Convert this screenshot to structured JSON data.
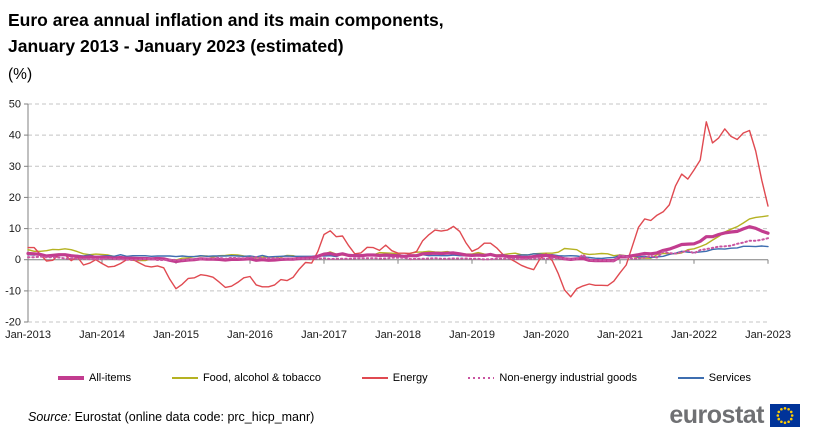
{
  "header": {
    "title_line1": "Euro area annual inflation and its main components,",
    "title_line2": "January 2013 - January 2023 (estimated)",
    "unit": "(%)"
  },
  "chart_data": {
    "type": "line",
    "title": "Euro area annual inflation and its main components, January 2013 - January 2023 (estimated)",
    "ylabel": "(%)",
    "xlabel": "",
    "x_unit": "month",
    "x_start": "Jan-2013",
    "x_end": "Jan-2023",
    "x_tick_labels": [
      "Jan-2013",
      "Jan-2014",
      "Jan-2015",
      "Jan-2016",
      "Jan-2017",
      "Jan-2018",
      "Jan-2019",
      "Jan-2020",
      "Jan-2021",
      "Jan-2022",
      "Jan-2023"
    ],
    "y_ticks": [
      50,
      40,
      30,
      20,
      10,
      0,
      -10,
      -20
    ],
    "ylim": [
      -20,
      50
    ],
    "grid": "horizontal-dashed",
    "zero_line": "solid",
    "legend_position": "bottom",
    "axis_color": "#808080",
    "grid_color": "#C4C4C4",
    "series": [
      {
        "name": "All-items",
        "color": "#C23C8F",
        "line_width": 3.2,
        "dash": "solid",
        "values": [
          2.0,
          1.9,
          1.7,
          1.2,
          1.4,
          1.6,
          1.6,
          1.3,
          1.1,
          0.7,
          0.9,
          0.8,
          0.8,
          0.7,
          0.5,
          0.7,
          0.5,
          0.5,
          0.4,
          0.4,
          0.3,
          0.4,
          0.3,
          -0.2,
          -0.6,
          -0.3,
          -0.1,
          0.0,
          0.3,
          0.2,
          0.2,
          0.1,
          -0.1,
          0.1,
          0.1,
          0.2,
          0.3,
          -0.2,
          0.0,
          -0.2,
          -0.1,
          0.1,
          0.2,
          0.2,
          0.4,
          0.5,
          0.6,
          1.1,
          1.8,
          2.0,
          1.5,
          1.9,
          1.4,
          1.3,
          1.3,
          1.5,
          1.5,
          1.4,
          1.5,
          1.4,
          1.3,
          1.1,
          1.3,
          1.3,
          1.9,
          2.0,
          2.1,
          2.0,
          2.1,
          2.2,
          1.9,
          1.5,
          1.4,
          1.5,
          1.4,
          1.7,
          1.2,
          1.3,
          1.0,
          1.0,
          0.8,
          0.7,
          1.0,
          1.3,
          1.4,
          1.2,
          0.7,
          0.3,
          0.1,
          0.3,
          0.4,
          -0.2,
          -0.3,
          -0.3,
          -0.3,
          -0.3,
          0.9,
          0.9,
          1.3,
          1.6,
          2.0,
          1.9,
          2.2,
          3.0,
          3.4,
          4.1,
          4.9,
          5.0,
          5.1,
          5.9,
          7.4,
          7.4,
          8.1,
          8.6,
          8.9,
          9.1,
          9.9,
          10.6,
          10.1,
          9.2,
          8.5
        ]
      },
      {
        "name": "Food, alcohol & tobacco",
        "color": "#B5B222",
        "line_width": 1.4,
        "dash": "solid",
        "values": [
          3.2,
          2.7,
          2.7,
          2.9,
          3.3,
          3.2,
          3.5,
          3.2,
          2.6,
          1.9,
          1.6,
          1.8,
          1.7,
          1.5,
          1.0,
          0.7,
          0.1,
          -0.2,
          -0.3,
          -0.3,
          0.3,
          0.5,
          0.5,
          0.0,
          -0.1,
          0.5,
          0.6,
          1.0,
          1.2,
          1.2,
          0.9,
          1.3,
          1.4,
          1.6,
          1.5,
          1.2,
          1.0,
          0.6,
          0.8,
          0.8,
          0.9,
          0.9,
          1.4,
          1.3,
          0.7,
          0.4,
          0.7,
          1.2,
          1.8,
          2.5,
          1.8,
          1.5,
          1.5,
          1.4,
          1.4,
          1.4,
          1.5,
          2.3,
          2.2,
          2.1,
          1.9,
          1.0,
          2.1,
          2.4,
          2.5,
          2.7,
          2.5,
          2.4,
          2.6,
          2.2,
          1.9,
          1.8,
          1.8,
          2.3,
          1.8,
          1.5,
          1.5,
          1.6,
          1.9,
          2.1,
          1.6,
          1.5,
          1.9,
          2.0,
          2.1,
          2.1,
          2.4,
          3.6,
          3.4,
          3.2,
          2.0,
          1.7,
          1.8,
          2.0,
          1.9,
          1.3,
          1.5,
          1.3,
          1.1,
          0.6,
          0.5,
          0.5,
          1.6,
          2.0,
          2.0,
          1.9,
          2.2,
          3.2,
          3.5,
          4.2,
          5.0,
          6.3,
          7.5,
          8.9,
          9.8,
          10.6,
          11.8,
          13.1,
          13.6,
          13.8,
          14.1
        ]
      },
      {
        "name": "Energy",
        "color": "#E04A51",
        "line_width": 1.4,
        "dash": "solid",
        "values": [
          3.9,
          3.9,
          1.7,
          -0.4,
          -0.2,
          1.6,
          1.6,
          -0.3,
          0.9,
          -1.7,
          -1.1,
          0.0,
          -1.2,
          -2.3,
          -2.1,
          -1.2,
          0.0,
          0.1,
          -1.0,
          -2.0,
          -2.3,
          -2.0,
          -2.6,
          -6.3,
          -9.3,
          -7.9,
          -6.0,
          -5.8,
          -4.8,
          -5.1,
          -5.6,
          -7.2,
          -8.9,
          -8.5,
          -7.3,
          -5.8,
          -5.4,
          -8.1,
          -8.7,
          -8.7,
          -8.1,
          -6.4,
          -6.7,
          -5.6,
          -3.0,
          -0.9,
          -1.1,
          2.6,
          8.1,
          9.3,
          7.4,
          7.6,
          4.5,
          1.9,
          2.2,
          4.0,
          3.9,
          3.0,
          4.7,
          2.9,
          2.1,
          2.1,
          2.0,
          2.6,
          6.1,
          8.0,
          9.5,
          9.2,
          9.5,
          10.7,
          9.1,
          5.5,
          2.7,
          3.6,
          5.3,
          5.3,
          3.8,
          1.7,
          0.5,
          -0.6,
          -1.8,
          -2.6,
          -3.2,
          0.2,
          1.9,
          -0.3,
          -4.5,
          -9.7,
          -11.9,
          -9.3,
          -8.4,
          -7.8,
          -8.2,
          -8.2,
          -8.3,
          -6.9,
          -4.2,
          -1.7,
          4.3,
          10.4,
          13.1,
          12.6,
          14.3,
          15.4,
          17.6,
          23.7,
          27.5,
          25.9,
          28.8,
          32.0,
          44.3,
          37.5,
          39.1,
          42.0,
          39.6,
          38.6,
          40.7,
          41.5,
          34.9,
          25.5,
          17.2
        ]
      },
      {
        "name": "Non-energy industrial goods",
        "color": "#C955A1",
        "line_width": 2,
        "dash": "dotted",
        "values": [
          0.8,
          0.8,
          1.0,
          0.8,
          0.8,
          0.7,
          0.4,
          0.4,
          0.3,
          0.3,
          0.2,
          0.2,
          0.2,
          0.4,
          0.2,
          0.1,
          0.0,
          -0.1,
          0.0,
          0.3,
          0.2,
          -0.1,
          -0.1,
          0.0,
          -0.1,
          -0.1,
          0.0,
          0.1,
          0.2,
          0.4,
          0.4,
          0.6,
          0.3,
          0.6,
          0.5,
          0.5,
          0.7,
          0.8,
          0.5,
          0.5,
          0.5,
          0.4,
          0.4,
          0.3,
          0.5,
          0.3,
          0.3,
          0.3,
          0.5,
          0.2,
          0.3,
          0.3,
          0.3,
          0.4,
          0.5,
          0.5,
          0.5,
          0.4,
          0.4,
          0.6,
          0.6,
          0.6,
          0.2,
          0.3,
          0.3,
          0.4,
          0.5,
          0.3,
          0.3,
          0.4,
          0.4,
          0.4,
          0.3,
          0.3,
          0.1,
          0.2,
          0.3,
          0.3,
          0.4,
          0.3,
          0.2,
          0.3,
          0.4,
          0.5,
          0.3,
          0.5,
          0.5,
          0.3,
          0.2,
          0.2,
          1.6,
          -0.1,
          -0.3,
          -0.1,
          -0.3,
          -0.5,
          1.5,
          1.0,
          0.3,
          0.4,
          0.7,
          1.2,
          0.7,
          2.6,
          2.1,
          2.0,
          2.4,
          2.9,
          2.1,
          3.1,
          3.4,
          3.8,
          4.2,
          4.3,
          4.5,
          5.1,
          5.5,
          6.1,
          6.1,
          6.4,
          6.9
        ]
      },
      {
        "name": "Services",
        "color": "#3E6EB0",
        "line_width": 1.4,
        "dash": "solid",
        "values": [
          1.6,
          1.5,
          1.8,
          1.1,
          1.5,
          1.4,
          1.4,
          1.4,
          1.4,
          1.2,
          1.5,
          1.0,
          1.2,
          1.3,
          1.1,
          1.6,
          1.1,
          1.3,
          1.3,
          1.3,
          1.1,
          1.2,
          1.2,
          1.2,
          1.0,
          1.2,
          1.0,
          1.0,
          1.3,
          1.1,
          1.2,
          1.2,
          1.2,
          1.3,
          1.2,
          1.1,
          1.2,
          0.9,
          1.4,
          0.9,
          1.0,
          1.1,
          1.2,
          1.1,
          1.1,
          1.1,
          1.1,
          1.3,
          1.2,
          1.3,
          1.0,
          1.8,
          1.3,
          1.6,
          1.5,
          1.6,
          1.5,
          1.2,
          1.2,
          1.2,
          1.2,
          1.3,
          1.5,
          1.0,
          1.6,
          1.3,
          1.4,
          1.3,
          1.3,
          1.5,
          1.3,
          1.3,
          1.6,
          1.4,
          1.1,
          1.9,
          1.0,
          1.6,
          1.2,
          1.3,
          1.5,
          1.5,
          1.9,
          1.8,
          1.5,
          1.6,
          1.3,
          1.2,
          1.3,
          1.2,
          0.9,
          0.7,
          0.5,
          0.4,
          0.6,
          0.7,
          1.4,
          1.2,
          1.3,
          0.9,
          1.1,
          0.7,
          0.9,
          1.1,
          1.7,
          2.1,
          2.7,
          2.4,
          2.3,
          2.5,
          2.7,
          3.3,
          3.5,
          3.4,
          3.7,
          3.8,
          4.3,
          4.3,
          4.2,
          4.4,
          4.2
        ]
      }
    ]
  },
  "footer": {
    "source_label": "Source:",
    "source_text": " Eurostat (online data code: prc_hicp_manr)",
    "logo_text": "eurostat",
    "flag_color": "#003399",
    "star_color": "#FFCC00"
  }
}
